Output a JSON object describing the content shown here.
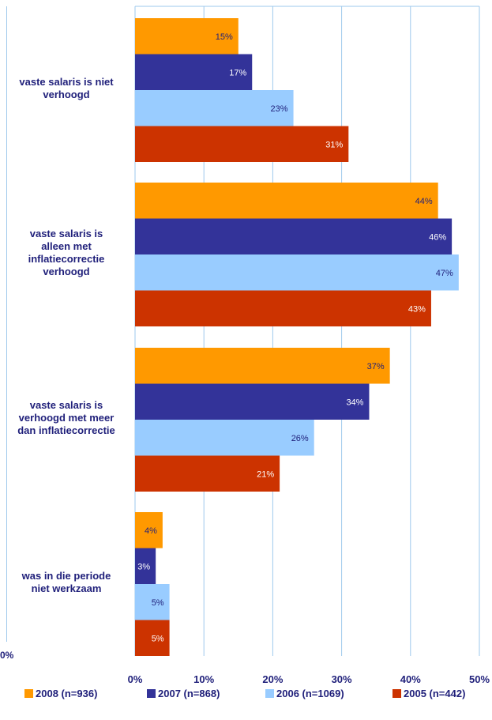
{
  "cut_off_tick": "0%",
  "chart_data": {
    "type": "bar",
    "orientation": "horizontal",
    "categories": [
      "vaste salaris is niet verhoogd",
      "vaste salaris is alleen met inflatiecorrectie verhoogd",
      "vaste salaris is verhoogd met meer dan inflatiecorrectie",
      "was in die periode niet werkzaam"
    ],
    "category_lines": [
      [
        "vaste salaris is niet",
        "verhoogd"
      ],
      [
        "vaste salaris is",
        "alleen met",
        "inflatiecorrectie",
        "verhoogd"
      ],
      [
        "vaste salaris is",
        "verhoogd met meer",
        "dan inflatiecorrectie"
      ],
      [
        "was in die periode",
        "niet werkzaam"
      ]
    ],
    "series": [
      {
        "name": "2008 (n=936)",
        "values": [
          15,
          44,
          37,
          4
        ],
        "labels": [
          "15%",
          "44%",
          "37%",
          "4%"
        ],
        "color": "#ff9900",
        "label_color": "#1f1f7a"
      },
      {
        "name": "2007 (n=868)",
        "values": [
          17,
          46,
          34,
          3
        ],
        "labels": [
          "17%",
          "46%",
          "34%",
          "3%"
        ],
        "color": "#333399",
        "label_color": "#ffffff"
      },
      {
        "name": "2006 (n=1069)",
        "values": [
          23,
          47,
          26,
          5
        ],
        "labels": [
          "23%",
          "47%",
          "26%",
          "5%"
        ],
        "color": "#99ccff",
        "label_color": "#1f1f7a"
      },
      {
        "name": "2005 (n=442)",
        "values": [
          31,
          43,
          21,
          5
        ],
        "labels": [
          "31%",
          "43%",
          "21%",
          "5%"
        ],
        "color": "#cc3300",
        "label_color": "#ffffff"
      }
    ],
    "xlim": [
      0,
      50
    ],
    "xticks": [
      0,
      10,
      20,
      30,
      40,
      50
    ],
    "xtick_labels": [
      "0%",
      "10%",
      "20%",
      "30%",
      "40%",
      "50%"
    ],
    "grid": true,
    "legend": "bottom",
    "colors": {
      "grid": "#9ec8ec",
      "text": "#1f1f7a"
    }
  }
}
